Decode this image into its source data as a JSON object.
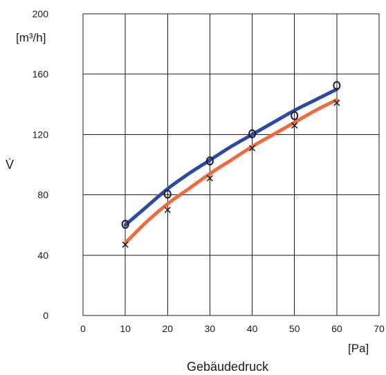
{
  "chart_data": {
    "type": "line",
    "title": "",
    "xlabel": "Gebäudedruck",
    "xunit": "[Pa]",
    "ylabel": "V̇",
    "yunit": "[m³/h]",
    "xlim": [
      0,
      70
    ],
    "ylim": [
      0,
      200
    ],
    "xticks": [
      0,
      10,
      20,
      30,
      40,
      50,
      60,
      70
    ],
    "yticks": [
      0,
      40,
      80,
      120,
      160,
      200
    ],
    "grid": true,
    "legend": "none",
    "series": [
      {
        "color": "#2b49a8",
        "marker": "o",
        "points": [
          {
            "x": 10,
            "y": 60
          },
          {
            "x": 20,
            "y": 80
          },
          {
            "x": 30,
            "y": 102
          },
          {
            "x": 40,
            "y": 120
          },
          {
            "x": 50,
            "y": 132
          },
          {
            "x": 60,
            "y": 152
          }
        ],
        "curve": [
          {
            "x": 10,
            "y": 60
          },
          {
            "x": 15,
            "y": 72
          },
          {
            "x": 20,
            "y": 84
          },
          {
            "x": 25,
            "y": 94
          },
          {
            "x": 30,
            "y": 103
          },
          {
            "x": 35,
            "y": 112
          },
          {
            "x": 40,
            "y": 120
          },
          {
            "x": 45,
            "y": 128
          },
          {
            "x": 50,
            "y": 136
          },
          {
            "x": 55,
            "y": 143
          },
          {
            "x": 60,
            "y": 150
          }
        ]
      },
      {
        "color": "#f26a3c",
        "marker": "x",
        "points": [
          {
            "x": 10,
            "y": 47
          },
          {
            "x": 20,
            "y": 70
          },
          {
            "x": 30,
            "y": 91
          },
          {
            "x": 40,
            "y": 111
          },
          {
            "x": 50,
            "y": 126
          },
          {
            "x": 60,
            "y": 141
          }
        ],
        "curve": [
          {
            "x": 10,
            "y": 48
          },
          {
            "x": 15,
            "y": 62
          },
          {
            "x": 20,
            "y": 74
          },
          {
            "x": 25,
            "y": 84
          },
          {
            "x": 30,
            "y": 94
          },
          {
            "x": 35,
            "y": 103
          },
          {
            "x": 40,
            "y": 112
          },
          {
            "x": 45,
            "y": 120
          },
          {
            "x": 50,
            "y": 128
          },
          {
            "x": 55,
            "y": 136
          },
          {
            "x": 60,
            "y": 143
          }
        ]
      }
    ]
  }
}
